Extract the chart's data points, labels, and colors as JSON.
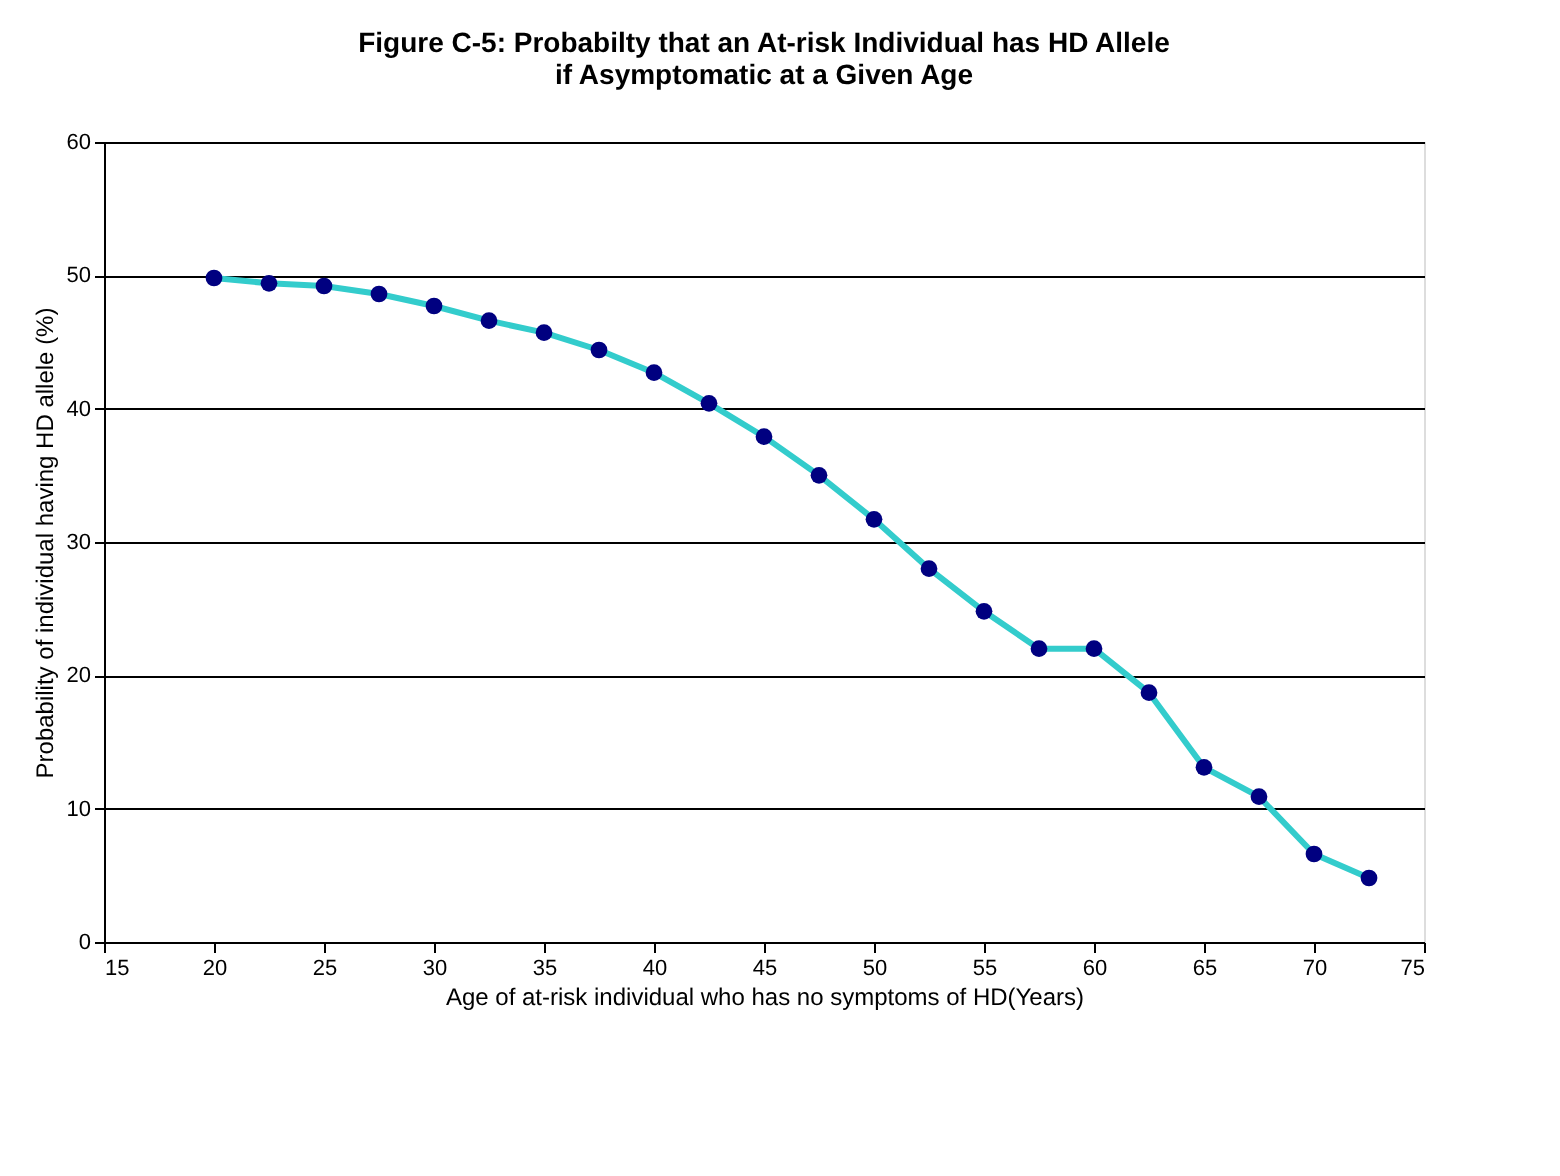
{
  "chart_data": {
    "type": "line",
    "title": [
      "Figure C-5: Probabilty that an At-risk Individual has HD Allele",
      "if Asymptomatic at a Given Age"
    ],
    "xlabel": "Age of at-risk individual who has no symptoms of HD(Years)",
    "ylabel": "Probability of individual having HD allele (%)",
    "x": [
      20,
      22.5,
      25,
      27.5,
      30,
      32.5,
      35,
      37.5,
      40,
      42.5,
      45,
      47.5,
      50,
      52.5,
      55,
      57.5,
      60,
      62.5,
      65,
      67.5,
      70,
      72.5
    ],
    "series": [
      {
        "color": "#33cccc",
        "values": [
          49.8,
          49.4,
          49.2,
          48.6,
          47.7,
          46.6,
          45.7,
          44.4,
          42.7,
          40.4,
          37.9,
          35.0,
          31.7,
          28.0,
          24.8,
          22.0,
          22.0,
          18.7,
          13.1,
          10.9,
          6.6,
          4.8
        ]
      }
    ],
    "marker": "circle",
    "xlim": [
      15,
      75
    ],
    "xticks": [
      15,
      20,
      25,
      30,
      35,
      40,
      45,
      50,
      55,
      60,
      65,
      70,
      75
    ],
    "ylim": [
      0,
      60
    ],
    "yticks": [
      0,
      10,
      20,
      30,
      40,
      50,
      60
    ],
    "grid": "y"
  }
}
